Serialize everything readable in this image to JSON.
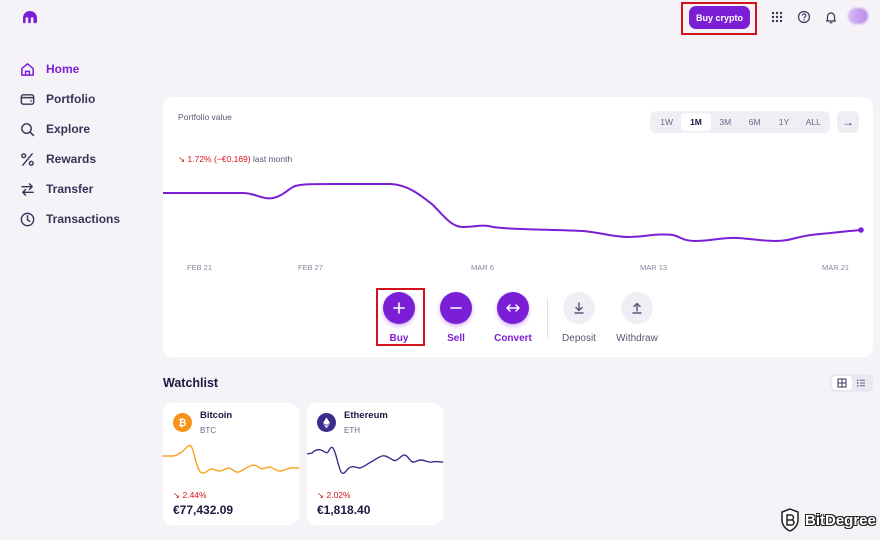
{
  "header": {
    "buy_crypto_label": "Buy crypto",
    "icons": [
      "apps-grid-icon",
      "help-icon",
      "bell-icon",
      "avatar"
    ]
  },
  "sidebar": {
    "items": [
      {
        "label": "Home",
        "icon": "home-icon",
        "active": true
      },
      {
        "label": "Portfolio",
        "icon": "wallet-icon",
        "active": false
      },
      {
        "label": "Explore",
        "icon": "search-icon",
        "active": false
      },
      {
        "label": "Rewards",
        "icon": "percent-icon",
        "active": false
      },
      {
        "label": "Transfer",
        "icon": "transfer-icon",
        "active": false
      },
      {
        "label": "Transactions",
        "icon": "clock-icon",
        "active": false
      }
    ]
  },
  "portfolio": {
    "title": "Portfolio value",
    "change_pct": "1.72%",
    "change_abs": "(−€0.169)",
    "change_period": "last month",
    "ranges": [
      "1W",
      "1M",
      "3M",
      "6M",
      "1Y",
      "ALL"
    ],
    "active_range": "1M",
    "x_ticks": [
      "FEB 21",
      "FEB 27",
      "MAR 6",
      "MAR 13",
      "MAR 21"
    ]
  },
  "actions": [
    {
      "label": "Buy",
      "icon": "plus-icon",
      "style": "purple"
    },
    {
      "label": "Sell",
      "icon": "minus-icon",
      "style": "purple"
    },
    {
      "label": "Convert",
      "icon": "convert-arrows-icon",
      "style": "purple"
    },
    {
      "label": "Deposit",
      "icon": "download-icon",
      "style": "gray"
    },
    {
      "label": "Withdraw",
      "icon": "upload-icon",
      "style": "gray"
    }
  ],
  "watchlist": {
    "title": "Watchlist",
    "cards": [
      {
        "name": "Bitcoin",
        "symbol": "BTC",
        "change": "2.44%",
        "price": "€77,432.09",
        "color": "#f7931a"
      },
      {
        "name": "Ethereum",
        "symbol": "ETH",
        "change": "2.02%",
        "price": "€1,818.40",
        "color": "#3c2d8c"
      }
    ]
  },
  "watermark": {
    "text": "BitDegree"
  },
  "colors": {
    "accent": "#7b1fd6",
    "negative": "#d4121a",
    "highlight": "#d4121a"
  }
}
